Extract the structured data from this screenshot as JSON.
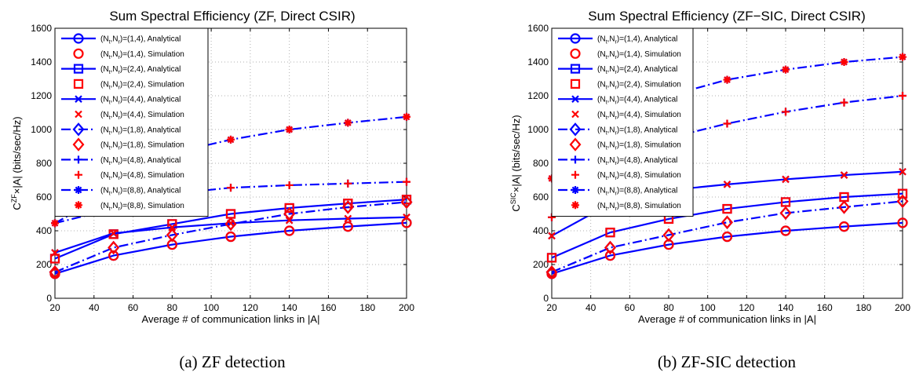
{
  "chart_data": [
    {
      "type": "line",
      "title": "Sum Spectral Efficiency (ZF, Direct CSIR)",
      "xlabel": "Average # of communication links in |A|",
      "ylabel_base": "C",
      "ylabel_sup": "ZF",
      "ylabel_rest": "×|A| (bits/sec/Hz)",
      "caption": "(a) ZF detection",
      "xlim": [
        20,
        200
      ],
      "ylim": [
        0,
        1600
      ],
      "xticks": [
        20,
        40,
        60,
        80,
        100,
        120,
        140,
        160,
        180,
        200
      ],
      "yticks": [
        0,
        200,
        400,
        600,
        800,
        1000,
        1200,
        1400,
        1600
      ],
      "grid": true,
      "legend_position": "top-left",
      "x": [
        20,
        50,
        80,
        110,
        140,
        170,
        200
      ],
      "series": [
        {
          "config": "(1,4)",
          "values": [
            145,
            253,
            318,
            365,
            400,
            425,
            447
          ]
        },
        {
          "config": "(2,4)",
          "values": [
            235,
            380,
            440,
            500,
            535,
            562,
            585
          ]
        },
        {
          "config": "(4,4)",
          "values": [
            270,
            385,
            420,
            445,
            462,
            472,
            480
          ]
        },
        {
          "config": "(1,8)",
          "values": [
            155,
            300,
            375,
            440,
            500,
            540,
            570
          ]
        },
        {
          "config": "(4,8)",
          "values": [
            445,
            530,
            620,
            655,
            670,
            680,
            690
          ]
        },
        {
          "config": "(8,8)",
          "values": [
            445,
            640,
            860,
            940,
            1000,
            1040,
            1075
          ]
        }
      ]
    },
    {
      "type": "line",
      "title": "Sum Spectral Efficiency (ZF−SIC, Direct CSIR)",
      "xlabel": "Average # of communication links in |A|",
      "ylabel_base": "C",
      "ylabel_sup": "SIC",
      "ylabel_rest": "×|A| (bits/sec/Hz)",
      "caption": "(b) ZF-SIC detection",
      "xlim": [
        20,
        200
      ],
      "ylim": [
        0,
        1600
      ],
      "xticks": [
        20,
        40,
        60,
        80,
        100,
        120,
        140,
        160,
        180,
        200
      ],
      "yticks": [
        0,
        200,
        400,
        600,
        800,
        1000,
        1200,
        1400,
        1600
      ],
      "grid": true,
      "legend_position": "top-left",
      "x": [
        20,
        50,
        80,
        110,
        140,
        170,
        200
      ],
      "series": [
        {
          "config": "(1,4)",
          "values": [
            145,
            253,
            318,
            365,
            400,
            425,
            447
          ]
        },
        {
          "config": "(2,4)",
          "values": [
            240,
            390,
            470,
            530,
            570,
            600,
            620
          ]
        },
        {
          "config": "(4,4)",
          "values": [
            370,
            560,
            640,
            675,
            705,
            730,
            750
          ]
        },
        {
          "config": "(1,8)",
          "values": [
            155,
            300,
            375,
            450,
            505,
            540,
            575
          ]
        },
        {
          "config": "(4,8)",
          "values": [
            480,
            800,
            950,
            1035,
            1105,
            1160,
            1200
          ]
        },
        {
          "config": "(8,8)",
          "values": [
            710,
            1020,
            1200,
            1295,
            1355,
            1400,
            1430
          ]
        }
      ]
    }
  ],
  "legend": {
    "prefix": "(N",
    "sub_t": "t",
    "sep": ",N",
    "sub_r": "r",
    "mid": ")=",
    "analytical": ", Analytical",
    "simulation": ", Simulation"
  },
  "colors": {
    "analytical": "#0000ff",
    "simulation": "#ff0000",
    "grid": "#b0b0b0"
  },
  "series_styles": [
    {
      "marker": "circle",
      "dash": "solid"
    },
    {
      "marker": "square",
      "dash": "solid"
    },
    {
      "marker": "x",
      "dash": "solid"
    },
    {
      "marker": "diamond",
      "dash": "dashdot"
    },
    {
      "marker": "plus",
      "dash": "dashdot"
    },
    {
      "marker": "asterisk",
      "dash": "dashdot"
    }
  ]
}
